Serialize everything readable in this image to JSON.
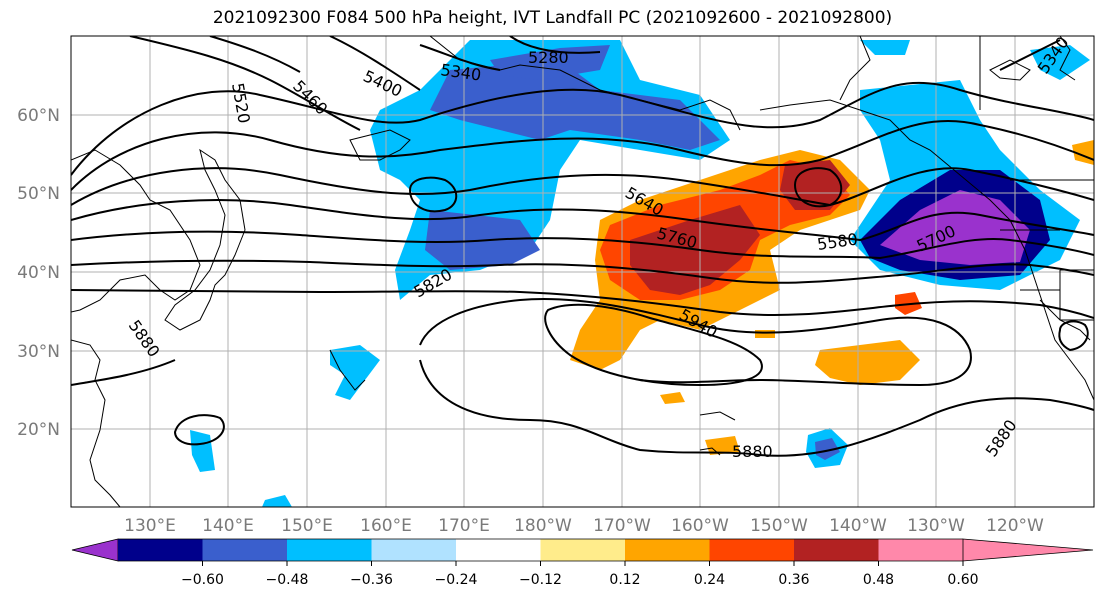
{
  "title": "2021092300 F084 500 hPa height, IVT Landfall PC (2021092600 - 2021092800)",
  "latitude_labels": [
    "60°N",
    "50°N",
    "40°N",
    "30°N",
    "20°N"
  ],
  "longitude_labels": [
    "130°E",
    "140°E",
    "150°E",
    "160°E",
    "170°E",
    "180°W",
    "170°W",
    "160°W",
    "150°W",
    "140°W",
    "130°W",
    "120°W"
  ],
  "contour_labels": [
    "5280",
    "5340",
    "5400",
    "5460",
    "5520",
    "5640",
    "5760",
    "5820",
    "5880",
    "5940",
    "5580",
    "5700",
    "5880",
    "5880",
    "5340"
  ],
  "colorbar": {
    "tick_labels": [
      "−0.60",
      "−0.48",
      "−0.36",
      "−0.24",
      "−0.12",
      "0.12",
      "0.24",
      "0.36",
      "0.48",
      "0.60"
    ],
    "colors": [
      "#9a32cd",
      "#00008b",
      "#3a5fcd",
      "#00bfff",
      "#b0e2ff",
      "#ffffff",
      "#ffec8b",
      "#ffa500",
      "#ff4500",
      "#b22222",
      "#ff88aa"
    ]
  }
}
